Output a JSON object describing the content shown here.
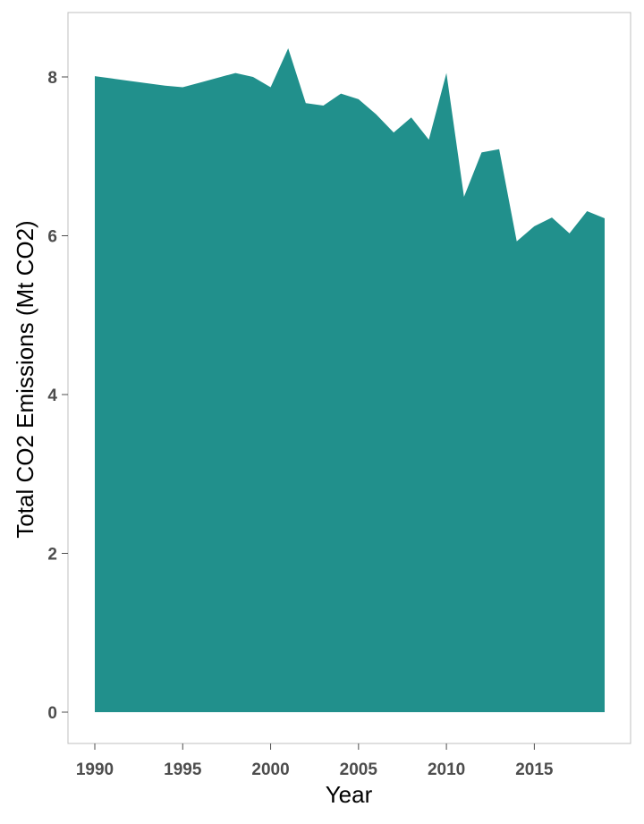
{
  "chart_data": {
    "type": "area",
    "xlabel": "Year",
    "ylabel": "Total CO2 Emissions (Mt CO2)",
    "xlim": [
      1990,
      2019
    ],
    "ylim": [
      0,
      8.36
    ],
    "x_ticks": [
      1990,
      1995,
      2000,
      2005,
      2010,
      2015
    ],
    "y_ticks": [
      0,
      2,
      4,
      6,
      8
    ],
    "fill_color": "#21908c",
    "panel_border_color": "#bfbfbf",
    "grid": false,
    "x": [
      1990,
      1991,
      1992,
      1993,
      1994,
      1995,
      1996,
      1997,
      1998,
      1999,
      2000,
      2001,
      2002,
      2003,
      2004,
      2005,
      2006,
      2007,
      2008,
      2009,
      2010,
      2011,
      2012,
      2013,
      2014,
      2015,
      2016,
      2017,
      2018,
      2019
    ],
    "values": [
      8.01,
      7.98,
      7.95,
      7.92,
      7.89,
      7.87,
      7.93,
      7.99,
      8.05,
      8.0,
      7.87,
      8.36,
      7.67,
      7.64,
      7.79,
      7.72,
      7.53,
      7.3,
      7.49,
      7.21,
      8.05,
      6.49,
      7.05,
      7.09,
      5.93,
      6.12,
      6.23,
      6.03,
      6.31,
      6.22
    ]
  }
}
